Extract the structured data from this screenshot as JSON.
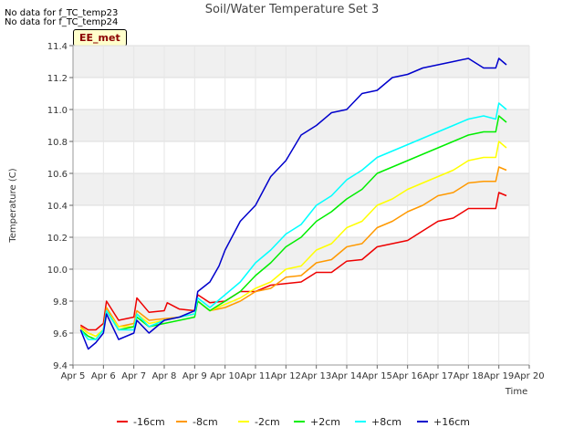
{
  "nodata_notes": [
    "No data for f_TC_temp23",
    "No data for f_TC_temp24"
  ],
  "site_tag": "EE_met",
  "chart_data": {
    "type": "line",
    "title": "Soil/Water Temperature Set 3",
    "xlabel": "Time",
    "ylabel": "Temperature (C)",
    "xlim": [
      5,
      20
    ],
    "ylim": [
      9.4,
      11.4
    ],
    "x_ticks": [
      5,
      6,
      7,
      8,
      9,
      10,
      11,
      12,
      13,
      14,
      15,
      16,
      17,
      18,
      19,
      20
    ],
    "x_tick_labels": [
      "Apr 5",
      "Apr 6",
      "Apr 7",
      "Apr 8",
      "Apr 9",
      "Apr 10",
      "Apr 11",
      "Apr 12",
      "Apr 13",
      "Apr 14",
      "Apr 15",
      "Apr 16",
      "Apr 17",
      "Apr 18",
      "Apr 19",
      "Apr 20"
    ],
    "y_ticks": [
      9.4,
      9.6,
      9.8,
      10.0,
      10.2,
      10.4,
      10.6,
      10.8,
      11.0,
      11.2,
      11.4
    ],
    "y_tick_labels": [
      "9.4",
      "9.6",
      "9.8",
      "10.0",
      "10.2",
      "10.4",
      "10.6",
      "10.8",
      "11.0",
      "11.2",
      "11.4"
    ],
    "series": [
      {
        "name": "-16cm",
        "color": "#ee0000",
        "x": [
          5.25,
          5.5,
          5.75,
          6.0,
          6.1,
          6.5,
          7.0,
          7.1,
          7.5,
          8.0,
          8.1,
          8.5,
          9.0,
          9.1,
          9.5,
          10.0,
          10.5,
          11.0,
          11.5,
          12.0,
          12.5,
          13.0,
          13.5,
          14.0,
          14.5,
          15.0,
          15.5,
          16.0,
          16.5,
          17.0,
          17.5,
          18.0,
          18.5,
          18.9,
          19.0,
          19.25
        ],
        "y": [
          9.65,
          9.62,
          9.62,
          9.66,
          9.8,
          9.68,
          9.7,
          9.82,
          9.73,
          9.74,
          9.79,
          9.75,
          9.74,
          9.84,
          9.79,
          9.8,
          9.86,
          9.86,
          9.9,
          9.91,
          9.92,
          9.98,
          9.98,
          10.05,
          10.06,
          10.14,
          10.16,
          10.18,
          10.24,
          10.3,
          10.32,
          10.38,
          10.38,
          10.38,
          10.48,
          10.46
        ]
      },
      {
        "name": "-8cm",
        "color": "#ff9900",
        "x": [
          5.25,
          5.5,
          5.75,
          6.0,
          6.1,
          6.5,
          7.0,
          7.1,
          7.5,
          8.0,
          8.5,
          9.0,
          9.1,
          9.5,
          10.0,
          10.5,
          11.0,
          11.5,
          12.0,
          12.5,
          13.0,
          13.5,
          14.0,
          14.5,
          15.0,
          15.5,
          16.0,
          16.5,
          17.0,
          17.5,
          18.0,
          18.5,
          18.9,
          19.0,
          19.25
        ],
        "y": [
          9.64,
          9.6,
          9.58,
          9.62,
          9.76,
          9.64,
          9.66,
          9.74,
          9.68,
          9.69,
          9.7,
          9.72,
          9.8,
          9.74,
          9.76,
          9.8,
          9.86,
          9.88,
          9.95,
          9.96,
          10.04,
          10.06,
          10.14,
          10.16,
          10.26,
          10.3,
          10.36,
          10.4,
          10.46,
          10.48,
          10.54,
          10.55,
          10.55,
          10.64,
          10.62
        ]
      },
      {
        "name": "-2cm",
        "color": "#ffff00",
        "x": [
          5.25,
          5.5,
          5.75,
          6.0,
          6.1,
          6.5,
          7.0,
          7.1,
          7.5,
          8.0,
          8.5,
          9.0,
          9.1,
          9.5,
          10.0,
          10.5,
          11.0,
          11.5,
          12.0,
          12.5,
          13.0,
          13.5,
          14.0,
          14.5,
          15.0,
          15.5,
          16.0,
          16.5,
          17.0,
          17.5,
          18.0,
          18.5,
          18.9,
          19.0,
          19.25
        ],
        "y": [
          9.63,
          9.6,
          9.58,
          9.62,
          9.74,
          9.64,
          9.64,
          9.72,
          9.66,
          9.68,
          9.7,
          9.72,
          9.8,
          9.74,
          9.78,
          9.82,
          9.88,
          9.92,
          10.0,
          10.02,
          10.12,
          10.16,
          10.26,
          10.3,
          10.4,
          10.44,
          10.5,
          10.54,
          10.58,
          10.62,
          10.68,
          10.7,
          10.7,
          10.8,
          10.76
        ]
      },
      {
        "name": "+2cm",
        "color": "#00ee00",
        "x": [
          5.25,
          5.5,
          5.75,
          6.0,
          6.1,
          6.5,
          7.0,
          7.1,
          7.5,
          8.0,
          8.5,
          9.0,
          9.1,
          9.5,
          10.0,
          10.5,
          11.0,
          11.5,
          12.0,
          12.5,
          13.0,
          13.5,
          14.0,
          14.5,
          15.0,
          15.5,
          16.0,
          16.5,
          17.0,
          17.5,
          18.0,
          18.5,
          18.9,
          19.0,
          19.25
        ],
        "y": [
          9.62,
          9.58,
          9.56,
          9.62,
          9.74,
          9.62,
          9.64,
          9.7,
          9.64,
          9.66,
          9.68,
          9.7,
          9.8,
          9.74,
          9.8,
          9.86,
          9.96,
          10.04,
          10.14,
          10.2,
          10.3,
          10.36,
          10.44,
          10.5,
          10.6,
          10.64,
          10.68,
          10.72,
          10.76,
          10.8,
          10.84,
          10.86,
          10.86,
          10.96,
          10.92
        ]
      },
      {
        "name": "+8cm",
        "color": "#00ffff",
        "x": [
          5.25,
          5.5,
          5.75,
          6.0,
          6.1,
          6.5,
          7.0,
          7.1,
          7.5,
          8.0,
          8.5,
          9.0,
          9.1,
          9.5,
          10.0,
          10.5,
          11.0,
          11.5,
          12.0,
          12.5,
          13.0,
          13.5,
          14.0,
          14.5,
          15.0,
          15.5,
          16.0,
          16.5,
          17.0,
          17.5,
          18.0,
          18.5,
          18.9,
          19.0,
          19.25
        ],
        "y": [
          9.62,
          9.56,
          9.56,
          9.62,
          9.74,
          9.62,
          9.62,
          9.72,
          9.64,
          9.68,
          9.7,
          9.72,
          9.82,
          9.76,
          9.84,
          9.92,
          10.04,
          10.12,
          10.22,
          10.28,
          10.4,
          10.46,
          10.56,
          10.62,
          10.7,
          10.74,
          10.78,
          10.82,
          10.86,
          10.9,
          10.94,
          10.96,
          10.94,
          11.04,
          11.0
        ]
      },
      {
        "name": "+16cm",
        "color": "#0000cc",
        "x": [
          5.25,
          5.5,
          5.75,
          6.0,
          6.1,
          6.5,
          7.0,
          7.1,
          7.5,
          8.0,
          8.5,
          9.0,
          9.1,
          9.5,
          9.8,
          10.0,
          10.5,
          11.0,
          11.5,
          12.0,
          12.5,
          13.0,
          13.5,
          14.0,
          14.5,
          15.0,
          15.5,
          16.0,
          16.5,
          17.0,
          17.5,
          18.0,
          18.5,
          18.9,
          19.0,
          19.25
        ],
        "y": [
          9.62,
          9.5,
          9.54,
          9.6,
          9.72,
          9.56,
          9.6,
          9.68,
          9.6,
          9.68,
          9.7,
          9.74,
          9.86,
          9.92,
          10.02,
          10.12,
          10.3,
          10.4,
          10.58,
          10.68,
          10.84,
          10.9,
          10.98,
          11.0,
          11.1,
          11.12,
          11.2,
          11.22,
          11.26,
          11.28,
          11.3,
          11.32,
          11.26,
          11.26,
          11.32,
          11.28
        ]
      }
    ],
    "legend_position": "bottom"
  }
}
